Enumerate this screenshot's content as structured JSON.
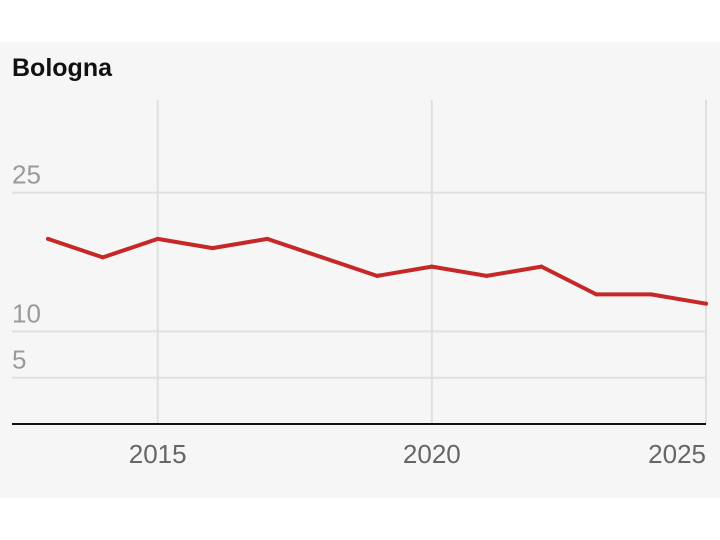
{
  "chart_data": {
    "type": "line",
    "title": "Bologna",
    "xlabel": "",
    "ylabel": "",
    "x": [
      2013,
      2014,
      2015,
      2016,
      2017,
      2018,
      2019,
      2020,
      2021,
      2022,
      2023,
      2024,
      2025
    ],
    "series": [
      {
        "values": [
          20,
          18,
          20,
          19,
          20,
          18,
          16,
          17,
          16,
          17,
          14,
          14,
          13
        ]
      }
    ],
    "xlim": [
      2013,
      2025
    ],
    "ylim": [
      0,
      35
    ],
    "x_ticks": [
      {
        "value": 2015,
        "label": "2015"
      },
      {
        "value": 2020,
        "label": "2020"
      },
      {
        "value": 2025,
        "label": "2025"
      }
    ],
    "y_ticks": [
      {
        "value": 5,
        "label": "5"
      },
      {
        "value": 10,
        "label": "10"
      },
      {
        "value": 25,
        "label": "25"
      }
    ],
    "grid": true,
    "colors": {
      "line": "#c62828",
      "background": "#f6f6f6",
      "grid": "#e0e0e0",
      "axis": "#111111"
    }
  }
}
